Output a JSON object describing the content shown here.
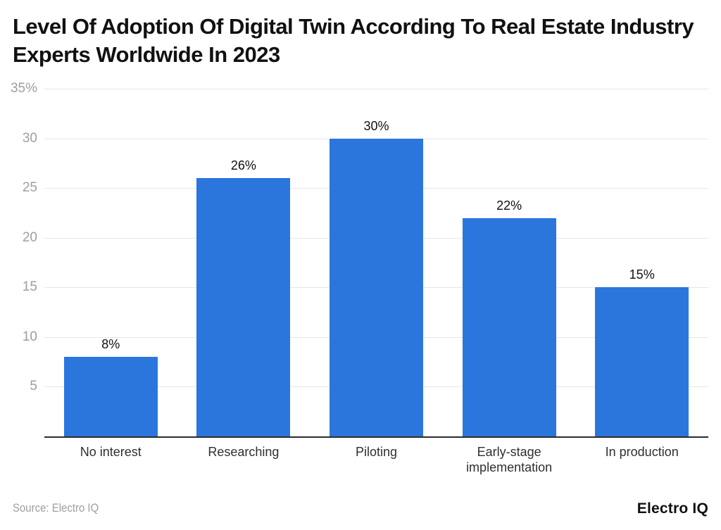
{
  "page": {
    "title": "Level Of Adoption Of Digital Twin According To Real Estate Industry Experts Worldwide In 2023"
  },
  "chart_data": {
    "type": "bar",
    "title": "Level Of Adoption Of Digital Twin According To Real Estate Industry Experts Worldwide In 2023",
    "categories": [
      "No interest",
      "Researching",
      "Piloting",
      "Early-stage implementation",
      "In production"
    ],
    "values": [
      8,
      26,
      30,
      22,
      15
    ],
    "value_labels": [
      "8%",
      "26%",
      "30%",
      "22%",
      "15%"
    ],
    "xlabel": "",
    "ylabel": "",
    "ylim": [
      0,
      35
    ],
    "yticks": [
      {
        "value": 35,
        "label": "35%"
      },
      {
        "value": 30,
        "label": "30"
      },
      {
        "value": 25,
        "label": "25"
      },
      {
        "value": 20,
        "label": "20"
      },
      {
        "value": 15,
        "label": "15"
      },
      {
        "value": 10,
        "label": "10"
      },
      {
        "value": 5,
        "label": "5"
      }
    ],
    "grid": true,
    "legend": false,
    "colors": {
      "bar": "#2b76dd",
      "grid": "#e6e6e6",
      "axis": "#2b2b2b",
      "tick_label": "#9e9e9e",
      "category_label": "#2f2f2f",
      "value_label": "#111111"
    }
  },
  "footer": {
    "source": "Source: Electro IQ",
    "brand": "Electro IQ"
  }
}
